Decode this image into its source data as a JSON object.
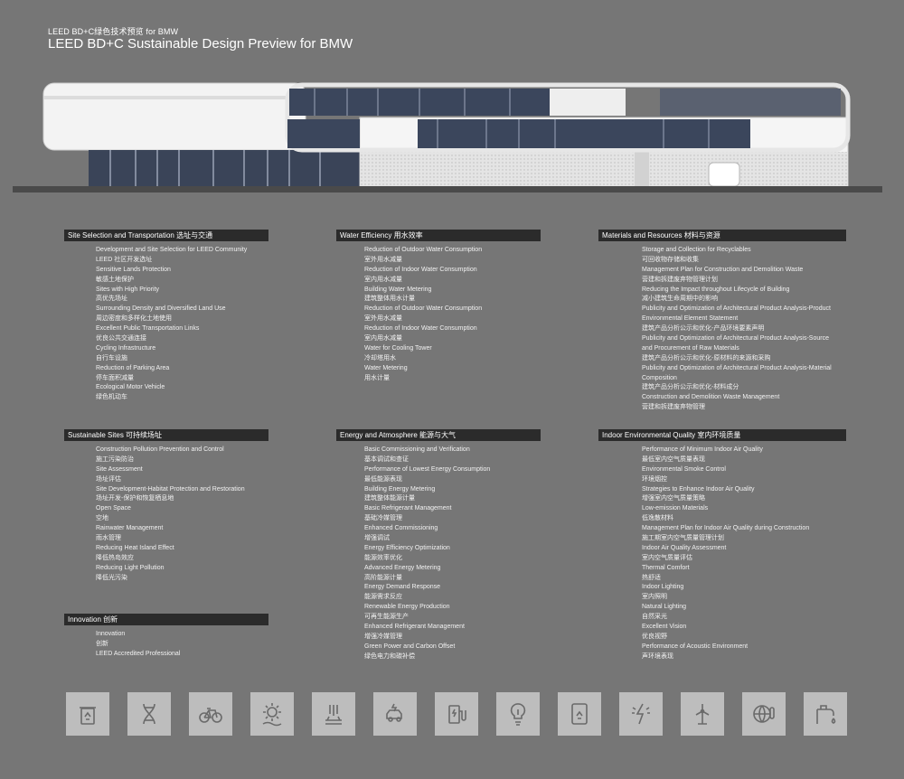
{
  "header": {
    "subtitle": "LEED BD+C绿色技术预览 for BMW",
    "title": "LEED BD+C Sustainable Design Preview for BMW"
  },
  "sections": {
    "site": {
      "heading": "Site Selection and Transportation 选址与交通",
      "items": [
        "Development and Site Selection for LEED Community",
        "LEED 社区开发选址",
        "Sensitive Lands Protection",
        "敏感土地保护",
        "Sites with High Priority",
        "高优先场址",
        "Surrounding Density and Diversified Land Use",
        "周边密度和多样化土地使用",
        "Excellent Public Transportation Links",
        "优良公共交通连接",
        "Cycling Infrastructure",
        "自行车设施",
        "Reduction of Parking Area",
        "停车面积减量",
        "Ecological Motor Vehicle",
        "绿色机动车"
      ]
    },
    "water": {
      "heading": "Water Efficiency 用水效率",
      "items": [
        "Reduction of Outdoor Water Consumption",
        "室外用水减量",
        "Reduction of Indoor Water Consumption",
        "室内用水减量",
        "Building Water Metering",
        "建筑整体用水计量",
        "Reduction of Outdoor Water Consumption",
        "室外用水减量",
        "Reduction of Indoor Water Consumption",
        "室内用水减量",
        "Water for Cooling Tower",
        "冷却塔用水",
        "Water Metering",
        "用水计量"
      ]
    },
    "materials": {
      "heading": "Materials and Resources 材料与资源",
      "items": [
        "Storage and Collection for Recyclables",
        "可回收物存储和收集",
        "Management Plan for Construction and Demolition Waste",
        "营建和拆建废弃物管理计划",
        "Reducing the Impact throughout Lifecycle of Building",
        "减小建筑生命周期中的影响",
        "Publicity and Optimization of Architectural Product Analysis-Product",
        "Environmental Element Statement",
        "建筑产品分析公示和优化-产品环境要素声明",
        "Publicity and Optimization of Architectural Product Analysis-Source",
        "and Procurement of Raw Materials",
        "建筑产品分析公示和优化-原材料的来源和采购",
        "Publicity and Optimization of Architectural Product Analysis-Material",
        "Composition",
        "建筑产品分析公示和优化-材料成分",
        "Construction and Demolition Waste Management",
        "营建和拆建废弃物管理"
      ]
    },
    "sustainable": {
      "heading": "Sustainable Sites 可持续场址",
      "items": [
        "Construction Pollution Prevention and Control",
        "施工污染防治",
        "Site Assessment",
        "场址评估",
        "Site Development-Habitat Protection and Restoration",
        "场址开发-保护和恢复栖息地",
        "Open Space",
        "空地",
        "Rainwater Management",
        "雨水管理",
        "Reducing Heat Island Effect",
        "降低热岛效应",
        "Reducing Light Pollution",
        "降低光污染"
      ]
    },
    "energy": {
      "heading": "Energy and Atmosphere 能源与大气",
      "items": [
        "Basic Commissioning and Verification",
        "基本调试和查证",
        "Performance of Lowest Energy Consumption",
        "最低能源表现",
        "Building Energy Metering",
        "建筑整体能源计量",
        "Basic Refrigerant Management",
        "基础冷媒管理",
        "Enhanced Commissioning",
        "增强调试",
        "Energy Efficiency Optimization",
        "能源效率优化",
        "Advanced Energy Metering",
        "高阶能源计量",
        "Energy Demand Response",
        "能源需求反应",
        "Renewable Energy Production",
        "可再生能源生产",
        "Enhanced Refrigerant Management",
        "增强冷媒管理",
        "Green Power and Carbon Offset",
        "绿色电力和碳补偿"
      ]
    },
    "ieq": {
      "heading": "Indoor Environmental Quality 室内环境质量",
      "items": [
        "Performance of Minimum Indoor Air Quality",
        "最低室内空气质量表现",
        "Environmental Smoke Control",
        "环境烟控",
        "Strategies to Enhance Indoor Air Quality",
        "增强室内空气质量策略",
        "Low-emission Materials",
        "低逸散材料",
        "Management Plan for Indoor Air Quality during Construction",
        "施工期室内空气质量管理计划",
        "Indoor Air Quality Assessment",
        "室内空气质量评估",
        "Thermal Comfort",
        "热舒适",
        "Indoor Lighting",
        "室内照明",
        "Natural Lighting",
        "自然采光",
        "Excellent Vision",
        "优良视野",
        "Performance of Acoustic Environment",
        "声环境表现"
      ]
    },
    "innovation": {
      "heading": "Innovation 创新",
      "items": [
        "Innovation",
        "创新",
        "LEED Accredited Professional"
      ]
    }
  },
  "icons": [
    "recycle-bin-icon",
    "dna-icon",
    "bicycle-icon",
    "solar-sun-icon",
    "heat-island-icon",
    "electric-car-icon",
    "ev-charger-icon",
    "light-bulb-icon",
    "recycle-document-icon",
    "energy-bolt-icon",
    "wind-turbine-icon",
    "globe-thermometer-icon",
    "water-faucet-icon"
  ],
  "colors": {
    "background": "#767676",
    "heading_bar": "#2b2b2b",
    "icon_tile": "#bdbdbd",
    "icon_stroke": "#6a6a6a",
    "glass": "#2f3a52"
  }
}
